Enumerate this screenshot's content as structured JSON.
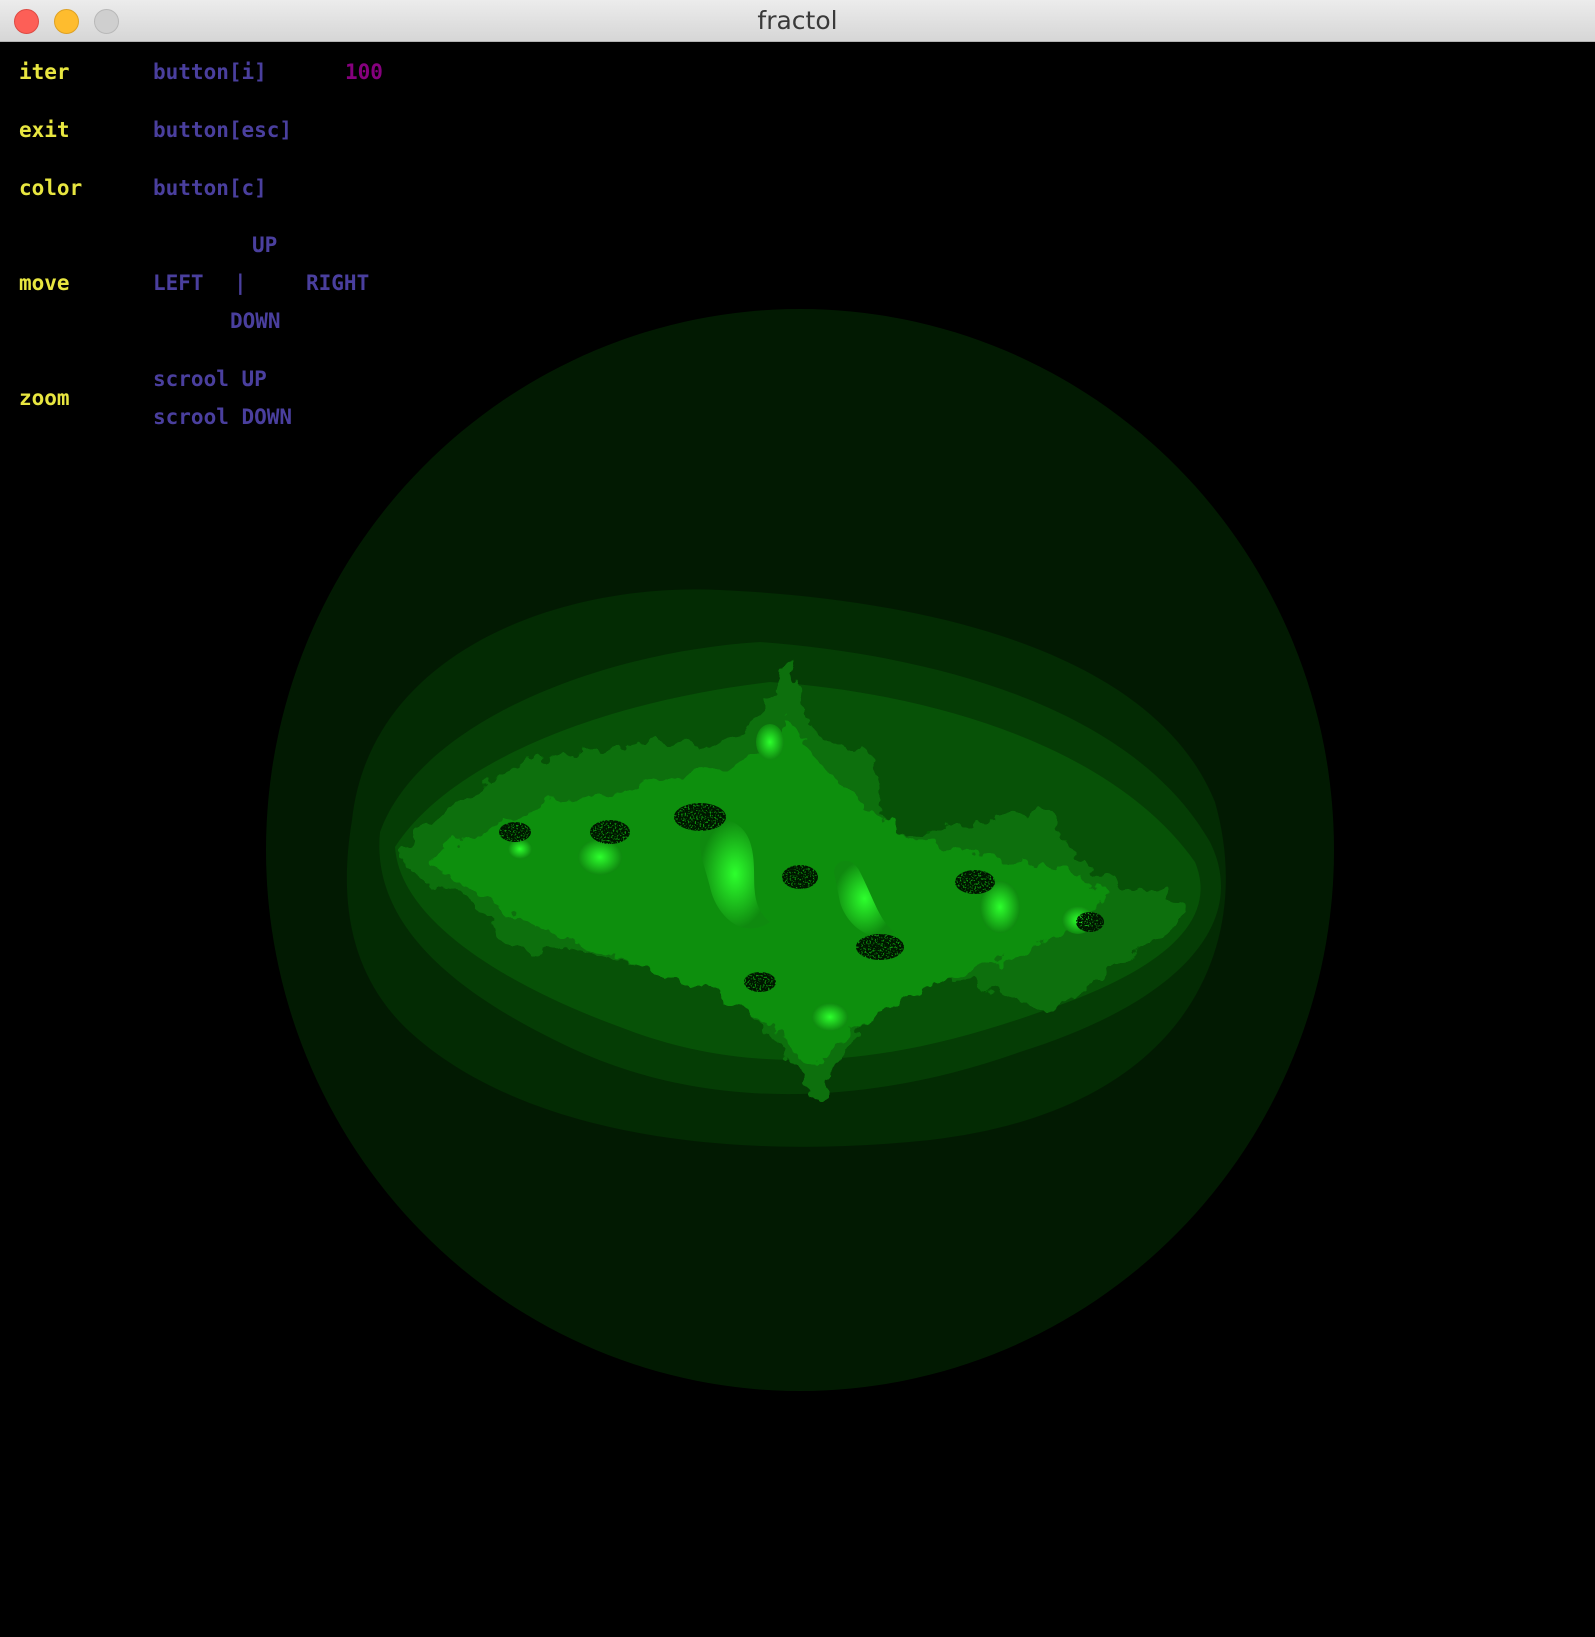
{
  "window": {
    "title": "fractol"
  },
  "hud": {
    "iter": {
      "label": "iter",
      "button": "button[i]",
      "value": "100"
    },
    "exit": {
      "label": "exit",
      "button": "button[esc]"
    },
    "color": {
      "label": "color",
      "button": "button[c]"
    },
    "move": {
      "label": "move",
      "up": "UP",
      "left": "LEFT",
      "separator": "|",
      "right": "RIGHT",
      "down": "DOWN"
    },
    "zoom": {
      "label": "zoom",
      "in": "scrool UP",
      "out": "scrool DOWN"
    }
  },
  "colors": {
    "label": "#e8e640",
    "hint": "#4a3f9e",
    "value": "#86007e",
    "fractal": "#22ff22"
  }
}
